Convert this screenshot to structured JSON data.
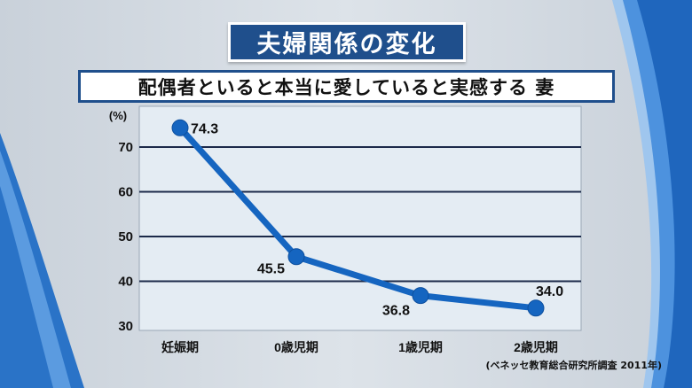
{
  "title": "夫婦関係の変化",
  "subtitle": "配偶者といると本当に愛していると実感する 妻",
  "source_note": "(ベネッセ教育総合研究所調査 2011年)",
  "colors": {
    "title_bg": "#1f4f8c",
    "line": "#1565c0",
    "plot_bg": "#e4ecf3",
    "grid": "#1c2a4a"
  },
  "chart_data": {
    "type": "line",
    "categories": [
      "妊娠期",
      "0歳児期",
      "1歳児期",
      "2歳児期"
    ],
    "values": [
      74.3,
      45.5,
      36.8,
      34.0
    ],
    "data_labels": [
      "74.3",
      "45.5",
      "36.8",
      "34.0"
    ],
    "title": "配偶者といると本当に愛していると実感する 妻",
    "xlabel": "",
    "ylabel": "(%)",
    "ylim": [
      30,
      78
    ],
    "yticks": [
      30,
      40,
      50,
      60,
      70
    ],
    "ytick_labels": [
      "30",
      "40",
      "50",
      "60",
      "70"
    ],
    "grid": true,
    "legend": "none"
  }
}
